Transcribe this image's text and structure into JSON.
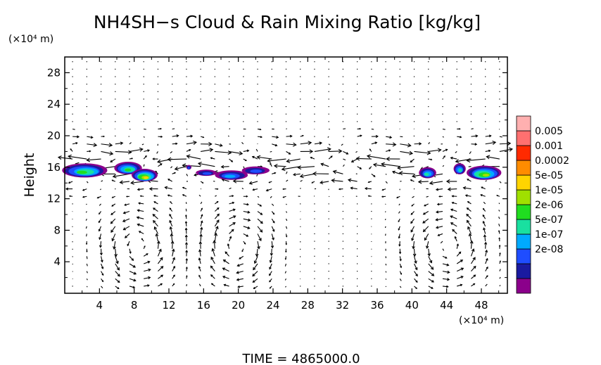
{
  "chart_data": {
    "type": "heatmap",
    "title": "NH4SH−s Cloud & Rain Mixing Ratio [kg/kg]",
    "ylabel": "Height",
    "xunit": "(×10⁴ m)",
    "yunit": "(×10⁴ m)",
    "xlim": [
      0,
      51
    ],
    "ylim": [
      0,
      30
    ],
    "xticks": [
      "4",
      "8",
      "12",
      "16",
      "20",
      "24",
      "28",
      "32",
      "36",
      "40",
      "44",
      "48"
    ],
    "yticks": [
      "4",
      "8",
      "12",
      "16",
      "20",
      "24",
      "28"
    ],
    "colorbar": {
      "labels": [
        "0.005",
        "0.001",
        "0.0002",
        "5e-05",
        "1e-05",
        "2e-06",
        "5e-07",
        "1e-07",
        "2e-08"
      ],
      "colors": [
        "#8b008b",
        "#1a1aa0",
        "#1f4dff",
        "#00aaff",
        "#19e0a0",
        "#20dd20",
        "#a0e000",
        "#ffd400",
        "#ff8c00",
        "#ff2a00",
        "#ff7070",
        "#ffb0b0"
      ]
    },
    "cloud_patches": [
      {
        "x": 2.3,
        "y": 15.6,
        "rx": 2.6,
        "ry": 0.9,
        "level": 5
      },
      {
        "x": 7.3,
        "y": 15.9,
        "rx": 1.6,
        "ry": 0.8,
        "level": 5
      },
      {
        "x": 9.2,
        "y": 15.0,
        "rx": 1.5,
        "ry": 0.8,
        "level": 7
      },
      {
        "x": 14.3,
        "y": 16.0,
        "rx": 0.3,
        "ry": 0.3,
        "level": 2
      },
      {
        "x": 16.3,
        "y": 15.3,
        "rx": 1.2,
        "ry": 0.4,
        "level": 2
      },
      {
        "x": 19.2,
        "y": 15.0,
        "rx": 1.9,
        "ry": 0.6,
        "level": 3
      },
      {
        "x": 22.0,
        "y": 15.6,
        "rx": 1.6,
        "ry": 0.5,
        "level": 2
      },
      {
        "x": 41.8,
        "y": 15.3,
        "rx": 1.0,
        "ry": 0.7,
        "level": 4
      },
      {
        "x": 45.5,
        "y": 15.8,
        "rx": 0.7,
        "ry": 0.7,
        "level": 4
      },
      {
        "x": 48.3,
        "y": 15.3,
        "rx": 2.0,
        "ry": 0.9,
        "level": 6
      }
    ],
    "cells": [
      {
        "x": 8.5,
        "y": 6.0,
        "rx": 4.2,
        "ry": 5.0,
        "dir": 1
      },
      {
        "x": 20.0,
        "y": 6.0,
        "rx": 4.0,
        "ry": 5.0,
        "dir": -1
      },
      {
        "x": 44.0,
        "y": 6.0,
        "rx": 4.5,
        "ry": 5.0,
        "dir": 1
      }
    ]
  },
  "time_label": "TIME  =  4865000.0"
}
